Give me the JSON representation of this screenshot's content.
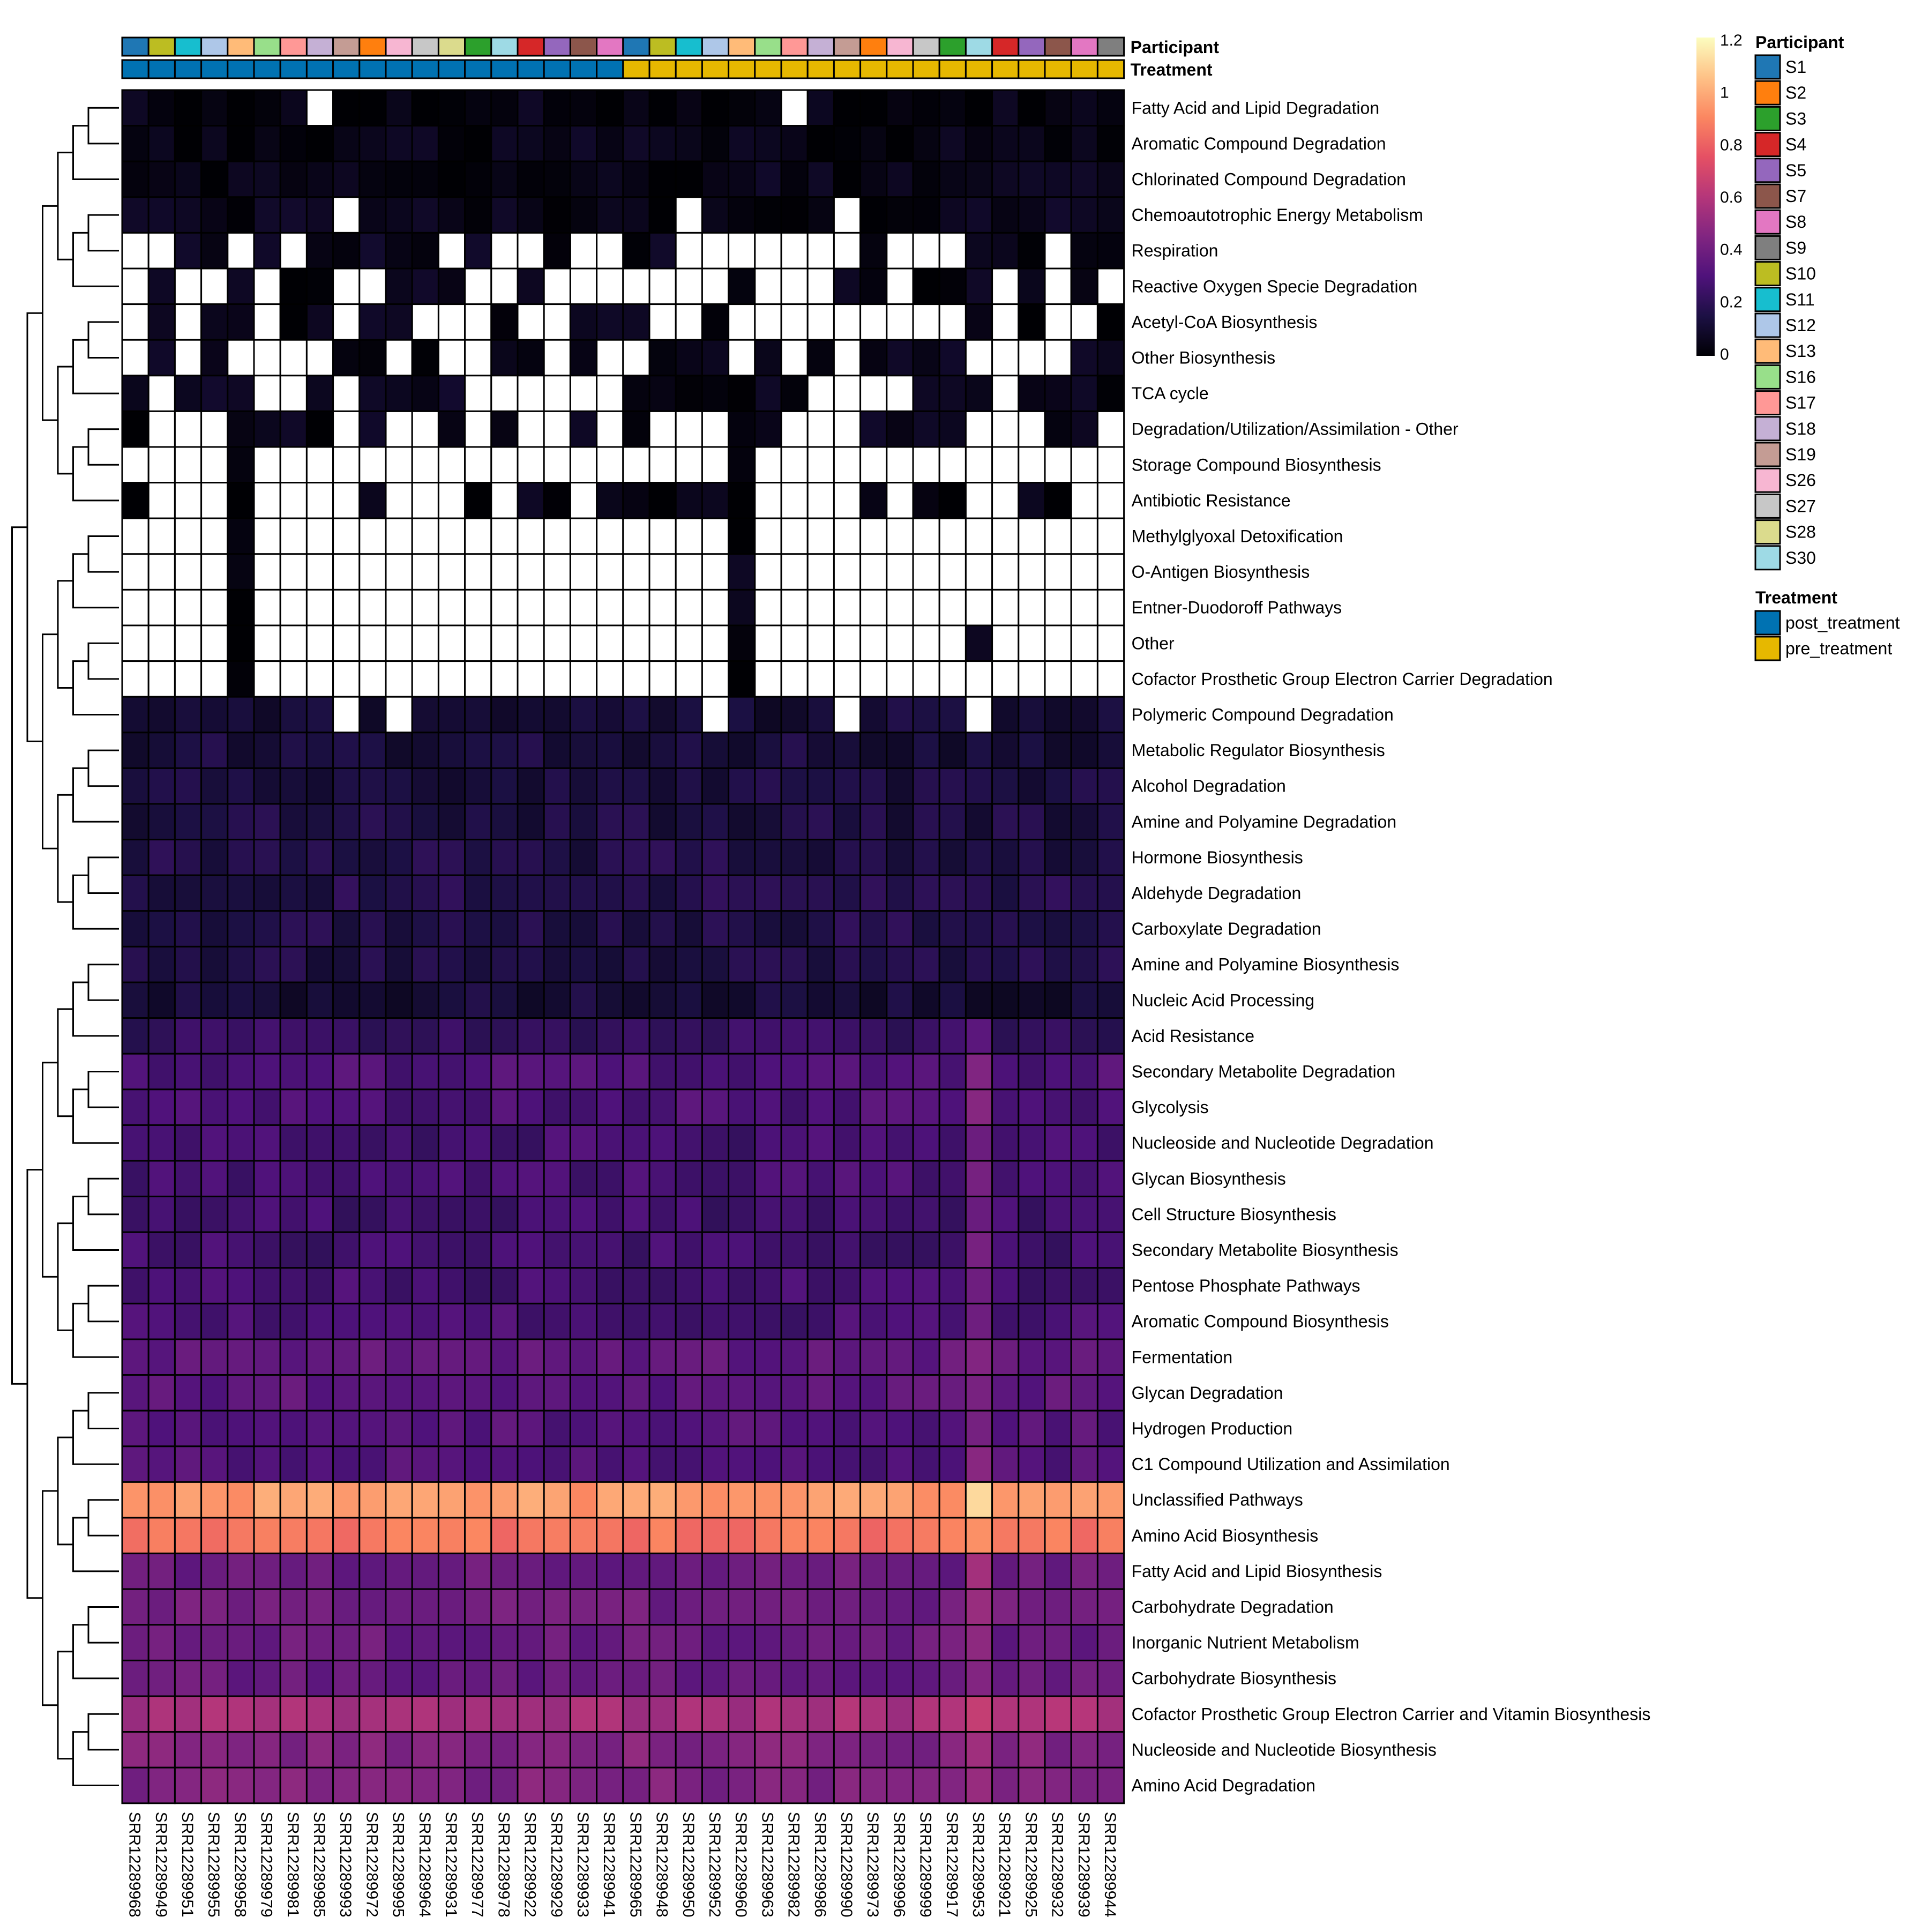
{
  "chart_data": {
    "type": "heatmap",
    "title": "",
    "samples": [
      "SRR12289968",
      "SRR12289949",
      "SRR12289951",
      "SRR12289955",
      "SRR12289958",
      "SRR12289979",
      "SRR12289981",
      "SRR12289985",
      "SRR12289993",
      "SRR12289972",
      "SRR12289995",
      "SRR12289964",
      "SRR12289931",
      "SRR12289977",
      "SRR12289978",
      "SRR12289922",
      "SRR12289929",
      "SRR12289933",
      "SRR12289941",
      "SRR12289965",
      "SRR12289948",
      "SRR12289950",
      "SRR12289952",
      "SRR12289960",
      "SRR12289963",
      "SRR12289982",
      "SRR12289986",
      "SRR12289990",
      "SRR12289973",
      "SRR12289996",
      "SRR12289999",
      "SRR12289917",
      "SRR12289953",
      "SRR12289921",
      "SRR12289925",
      "SRR12289932",
      "SRR12289939",
      "SRR12289944"
    ],
    "participant_by_sample": [
      "S1",
      "S10",
      "S11",
      "S12",
      "S13",
      "S16",
      "S17",
      "S18",
      "S19",
      "S2",
      "S26",
      "S27",
      "S28",
      "S3",
      "S30",
      "S4",
      "S5",
      "S7",
      "S8",
      "S1",
      "S10",
      "S11",
      "S12",
      "S13",
      "S16",
      "S17",
      "S18",
      "S19",
      "S2",
      "S26",
      "S27",
      "S3",
      "S30",
      "S4",
      "S5",
      "S7",
      "S8",
      "S9"
    ],
    "treatment_by_sample": [
      "post_treatment",
      "post_treatment",
      "post_treatment",
      "post_treatment",
      "post_treatment",
      "post_treatment",
      "post_treatment",
      "post_treatment",
      "post_treatment",
      "post_treatment",
      "post_treatment",
      "post_treatment",
      "post_treatment",
      "post_treatment",
      "post_treatment",
      "post_treatment",
      "post_treatment",
      "post_treatment",
      "post_treatment",
      "pre_treatment",
      "pre_treatment",
      "pre_treatment",
      "pre_treatment",
      "pre_treatment",
      "pre_treatment",
      "pre_treatment",
      "pre_treatment",
      "pre_treatment",
      "pre_treatment",
      "pre_treatment",
      "pre_treatment",
      "pre_treatment",
      "pre_treatment",
      "pre_treatment",
      "pre_treatment",
      "pre_treatment",
      "pre_treatment",
      "pre_treatment"
    ],
    "annotation_labels": [
      "Participant",
      "Treatment"
    ],
    "rows": [
      "Fatty Acid and Lipid Degradation",
      "Aromatic Compound Degradation",
      "Chlorinated Compound Degradation",
      "Chemoautotrophic Energy Metabolism",
      "Respiration",
      "Reactive Oxygen Specie Degradation",
      "Acetyl-CoA Biosynthesis",
      "Other Biosynthesis",
      "TCA cycle",
      "Degradation/Utilization/Assimilation - Other",
      "Storage Compound Biosynthesis",
      "Antibiotic Resistance",
      "Methylglyoxal Detoxification",
      "O-Antigen Biosynthesis",
      "Entner-Duodoroff Pathways",
      "Other",
      "Cofactor Prosthetic Group Electron Carrier Degradation",
      "Polymeric Compound Degradation",
      "Metabolic Regulator Biosynthesis",
      "Alcohol Degradation",
      "Amine and Polyamine Degradation",
      "Hormone Biosynthesis",
      "Aldehyde Degradation",
      "Carboxylate Degradation",
      "Amine and Polyamine Biosynthesis",
      "Nucleic Acid Processing",
      "Acid Resistance",
      "Secondary Metabolite Degradation",
      "Glycolysis",
      "Nucleoside and Nucleotide Degradation",
      "Glycan Biosynthesis",
      "Cell Structure Biosynthesis",
      "Secondary Metabolite Biosynthesis",
      "Pentose Phosphate Pathways",
      "Aromatic Compound Biosynthesis",
      "Fermentation",
      "Glycan Degradation",
      "Hydrogen Production",
      "C1 Compound Utilization and Assimilation",
      "Unclassified Pathways",
      "Amino Acid Biosynthesis",
      "Fatty Acid and Lipid Biosynthesis",
      "Carbohydrate Degradation",
      "Inorganic Nutrient Metabolism",
      "Carbohydrate Biosynthesis",
      "Cofactor Prosthetic Group Electron Carrier and Vitamin Biosynthesis",
      "Nucleoside and Nucleotide Biosynthesis",
      "Amino Acid Degradation"
    ],
    "row_baseline": [
      0.03,
      0.04,
      0.04,
      0.05,
      0.05,
      0.04,
      0.04,
      0.05,
      0.05,
      0.04,
      0.03,
      0.03,
      0.03,
      0.03,
      0.03,
      0.03,
      0.03,
      0.12,
      0.13,
      0.14,
      0.15,
      0.16,
      0.17,
      0.17,
      0.16,
      0.12,
      0.22,
      0.3,
      0.3,
      0.27,
      0.28,
      0.26,
      0.26,
      0.27,
      0.28,
      0.36,
      0.34,
      0.32,
      0.31,
      0.95,
      0.85,
      0.38,
      0.4,
      0.38,
      0.38,
      0.56,
      0.45,
      0.44
    ],
    "color_scale": {
      "min": 0,
      "max": 1.2,
      "ticks": [
        "0",
        "0.2",
        "0.4",
        "0.6",
        "0.8",
        "1",
        "1.2"
      ],
      "stops": [
        "#000004",
        "#1c1044",
        "#4f127b",
        "#812581",
        "#b5367a",
        "#e55064",
        "#fb8761",
        "#fec287",
        "#fcfdbf"
      ]
    },
    "missing_color": "#ffffff",
    "legend": {
      "participant_title": "Participant",
      "participants": [
        {
          "name": "S1",
          "color": "#1f77b4"
        },
        {
          "name": "S2",
          "color": "#ff7f0e"
        },
        {
          "name": "S3",
          "color": "#2ca02c"
        },
        {
          "name": "S4",
          "color": "#d62728"
        },
        {
          "name": "S5",
          "color": "#9467bd"
        },
        {
          "name": "S7",
          "color": "#8c564b"
        },
        {
          "name": "S8",
          "color": "#e377c2"
        },
        {
          "name": "S9",
          "color": "#7f7f7f"
        },
        {
          "name": "S10",
          "color": "#bcbd22"
        },
        {
          "name": "S11",
          "color": "#17becf"
        },
        {
          "name": "S12",
          "color": "#aec7e8"
        },
        {
          "name": "S13",
          "color": "#ffbb78"
        },
        {
          "name": "S16",
          "color": "#98df8a"
        },
        {
          "name": "S17",
          "color": "#ff9896"
        },
        {
          "name": "S18",
          "color": "#c5b0d5"
        },
        {
          "name": "S19",
          "color": "#c49c94"
        },
        {
          "name": "S26",
          "color": "#f7b6d2"
        },
        {
          "name": "S27",
          "color": "#c7c7c7"
        },
        {
          "name": "S28",
          "color": "#dbdb8d"
        },
        {
          "name": "S30",
          "color": "#9edae5"
        }
      ],
      "treatment_title": "Treatment",
      "treatments": [
        {
          "name": "post_treatment",
          "color": "#0072b2"
        },
        {
          "name": "pre_treatment",
          "color": "#e6b800"
        }
      ]
    }
  }
}
